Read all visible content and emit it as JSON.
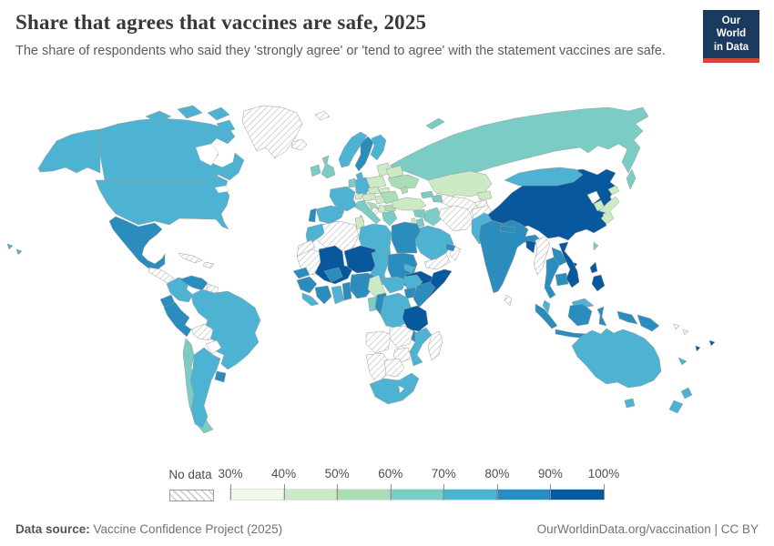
{
  "header": {
    "title": "Share that agrees that vaccines are safe, 2025",
    "subtitle": "The share of respondents who said they 'strongly agree' or 'tend to agree' with the statement vaccines are safe."
  },
  "logo": {
    "line1": "Our World",
    "line2": "in Data",
    "bg": "#1a3a5f",
    "accent": "#d7443b"
  },
  "legend": {
    "no_data_label": "No data",
    "ticks": [
      "30%",
      "40%",
      "50%",
      "60%",
      "70%",
      "80%",
      "90%",
      "100%"
    ]
  },
  "footer": {
    "source_label": "Data source:",
    "source_text": " Vaccine Confidence Project (2025)",
    "right_text": "OurWorldinData.org/vaccination | CC BY"
  },
  "chart_data": {
    "type": "choropleth_map",
    "title": "Share that agrees that vaccines are safe, 2025",
    "unit": "%",
    "legend_bins": [
      "30-40%",
      "40-50%",
      "50-60%",
      "60-70%",
      "70-80%",
      "80-90%",
      "90-100%"
    ],
    "bin_colors": {
      "30-40%": "#f0f9e8",
      "40-50%": "#ccebc5",
      "50-60%": "#a8ddb5",
      "60-70%": "#7bccc4",
      "70-80%": "#4eb3d3",
      "80-90%": "#2b8cbe",
      "90-100%": "#08589e",
      "no-data": "hatch",
      "none": "white"
    },
    "countries": [
      {
        "name": "russia",
        "bin": "60-70%"
      },
      {
        "name": "canada",
        "bin": "70-80%"
      },
      {
        "name": "united-states",
        "bin": "70-80%"
      },
      {
        "name": "greenland",
        "bin": "no-data"
      },
      {
        "name": "iceland",
        "bin": "no-data"
      },
      {
        "name": "svalbard",
        "bin": "no-data"
      },
      {
        "name": "mexico",
        "bin": "80-90%"
      },
      {
        "name": "central-america",
        "bin": "no-data"
      },
      {
        "name": "cuba",
        "bin": "no-data"
      },
      {
        "name": "hispaniola",
        "bin": "no-data"
      },
      {
        "name": "colombia",
        "bin": "70-80%"
      },
      {
        "name": "venezuela",
        "bin": "80-90%"
      },
      {
        "name": "guyana-suriname",
        "bin": "no-data"
      },
      {
        "name": "ecuador",
        "bin": "80-90%"
      },
      {
        "name": "peru",
        "bin": "80-90%"
      },
      {
        "name": "brazil",
        "bin": "70-80%"
      },
      {
        "name": "bolivia",
        "bin": "no-data"
      },
      {
        "name": "paraguay",
        "bin": "none"
      },
      {
        "name": "chile",
        "bin": "60-70%"
      },
      {
        "name": "argentina",
        "bin": "70-80%"
      },
      {
        "name": "uruguay",
        "bin": "80-90%"
      },
      {
        "name": "norway",
        "bin": "70-80%"
      },
      {
        "name": "sweden",
        "bin": "80-90%"
      },
      {
        "name": "finland",
        "bin": "70-80%"
      },
      {
        "name": "denmark",
        "bin": "70-80%"
      },
      {
        "name": "united-kingdom",
        "bin": "60-70%"
      },
      {
        "name": "ireland",
        "bin": "60-70%"
      },
      {
        "name": "baltic-states",
        "bin": "40-50%"
      },
      {
        "name": "belarus",
        "bin": "40-50%"
      },
      {
        "name": "poland",
        "bin": "40-50%"
      },
      {
        "name": "germany",
        "bin": "70-80%"
      },
      {
        "name": "netherlands",
        "bin": "60-70%"
      },
      {
        "name": "france",
        "bin": "70-80%"
      },
      {
        "name": "spain",
        "bin": "70-80%"
      },
      {
        "name": "portugal",
        "bin": "80-90%"
      },
      {
        "name": "switzerland",
        "bin": "40-50%"
      },
      {
        "name": "czechia",
        "bin": "40-50%"
      },
      {
        "name": "slovakia",
        "bin": "40-50%"
      },
      {
        "name": "austria",
        "bin": "40-50%"
      },
      {
        "name": "hungary",
        "bin": "40-50%"
      },
      {
        "name": "italy",
        "bin": "60-70%"
      },
      {
        "name": "croatia",
        "bin": "50-60%"
      },
      {
        "name": "bosnia",
        "bin": "no-data"
      },
      {
        "name": "serbia",
        "bin": "40-50%"
      },
      {
        "name": "romania",
        "bin": "50-60%"
      },
      {
        "name": "bulgaria",
        "bin": "50-60%"
      },
      {
        "name": "greece",
        "bin": "60-70%"
      },
      {
        "name": "ukraine",
        "bin": "50-60%"
      },
      {
        "name": "moldova",
        "bin": "50-60%"
      },
      {
        "name": "kazakhstan",
        "bin": "40-50%"
      },
      {
        "name": "uzbekistan-turkmenistan",
        "bin": "no-data"
      },
      {
        "name": "kyrgyzstan",
        "bin": "40-50%"
      },
      {
        "name": "tajikistan",
        "bin": "no-data"
      },
      {
        "name": "georgia",
        "bin": "60-70%"
      },
      {
        "name": "azerbaijan",
        "bin": "60-70%"
      },
      {
        "name": "turkey",
        "bin": "40-50%"
      },
      {
        "name": "syria",
        "bin": "60-70%"
      },
      {
        "name": "israel",
        "bin": "40-50%"
      },
      {
        "name": "jordan",
        "bin": "60-70%"
      },
      {
        "name": "iraq",
        "bin": "60-70%"
      },
      {
        "name": "iran",
        "bin": "no-data"
      },
      {
        "name": "afghanistan",
        "bin": "no-data"
      },
      {
        "name": "pakistan",
        "bin": "70-80%"
      },
      {
        "name": "saudi-arabia",
        "bin": "70-80%"
      },
      {
        "name": "yemen",
        "bin": "no-data"
      },
      {
        "name": "oman",
        "bin": "no-data"
      },
      {
        "name": "united-arab-emirates",
        "bin": "80-90%"
      },
      {
        "name": "china",
        "bin": "90-100%"
      },
      {
        "name": "mongolia",
        "bin": "70-80%"
      },
      {
        "name": "north-korea",
        "bin": "none"
      },
      {
        "name": "south-korea",
        "bin": "40-50%"
      },
      {
        "name": "japan",
        "bin": "40-50%"
      },
      {
        "name": "taiwan",
        "bin": "60-70%"
      },
      {
        "name": "india",
        "bin": "80-90%"
      },
      {
        "name": "nepal",
        "bin": "80-90%"
      },
      {
        "name": "bangladesh",
        "bin": "90-100%"
      },
      {
        "name": "sri-lanka",
        "bin": "no-data"
      },
      {
        "name": "myanmar",
        "bin": "no-data"
      },
      {
        "name": "thailand",
        "bin": "80-90%"
      },
      {
        "name": "laos",
        "bin": "80-90%"
      },
      {
        "name": "cambodia",
        "bin": "80-90%"
      },
      {
        "name": "vietnam",
        "bin": "90-100%"
      },
      {
        "name": "malaysia",
        "bin": "70-80%"
      },
      {
        "name": "indonesia",
        "bin": "80-90%"
      },
      {
        "name": "philippines",
        "bin": "90-100%"
      },
      {
        "name": "papua-new-guinea",
        "bin": "80-90%"
      },
      {
        "name": "solomon-islands",
        "bin": "no-data"
      },
      {
        "name": "morocco",
        "bin": "70-80%"
      },
      {
        "name": "western-sahara",
        "bin": "no-data"
      },
      {
        "name": "algeria",
        "bin": "no-data"
      },
      {
        "name": "tunisia",
        "bin": "40-50%"
      },
      {
        "name": "libya",
        "bin": "70-80%"
      },
      {
        "name": "egypt",
        "bin": "80-90%"
      },
      {
        "name": "mauritania",
        "bin": "no-data"
      },
      {
        "name": "mali",
        "bin": "90-100%"
      },
      {
        "name": "niger",
        "bin": "90-100%"
      },
      {
        "name": "chad",
        "bin": "70-80%"
      },
      {
        "name": "sudan",
        "bin": "80-90%"
      },
      {
        "name": "eritrea",
        "bin": "70-80%"
      },
      {
        "name": "ethiopia",
        "bin": "90-100%"
      },
      {
        "name": "somalia",
        "bin": "90-100%"
      },
      {
        "name": "senegal",
        "bin": "80-90%"
      },
      {
        "name": "guinea",
        "bin": "80-90%"
      },
      {
        "name": "liberia",
        "bin": "70-80%"
      },
      {
        "name": "ivory-coast",
        "bin": "80-90%"
      },
      {
        "name": "burkina-faso",
        "bin": "80-90%"
      },
      {
        "name": "ghana",
        "bin": "70-80%"
      },
      {
        "name": "togo-benin",
        "bin": "80-90%"
      },
      {
        "name": "nigeria",
        "bin": "80-90%"
      },
      {
        "name": "cameroon",
        "bin": "40-50%"
      },
      {
        "name": "central-african-republic",
        "bin": "70-80%"
      },
      {
        "name": "south-sudan",
        "bin": "70-80%"
      },
      {
        "name": "uganda",
        "bin": "80-90%"
      },
      {
        "name": "kenya",
        "bin": "80-90%"
      },
      {
        "name": "gabon",
        "bin": "60-70%"
      },
      {
        "name": "congo",
        "bin": "80-90%"
      },
      {
        "name": "democratic-republic-of-congo",
        "bin": "70-80%"
      },
      {
        "name": "tanzania",
        "bin": "90-100%"
      },
      {
        "name": "malawi",
        "bin": "80-90%"
      },
      {
        "name": "angola",
        "bin": "no-data"
      },
      {
        "name": "zambia",
        "bin": "no-data"
      },
      {
        "name": "mozambique",
        "bin": "70-80%"
      },
      {
        "name": "zimbabwe",
        "bin": "no-data"
      },
      {
        "name": "namibia",
        "bin": "no-data"
      },
      {
        "name": "botswana",
        "bin": "no-data"
      },
      {
        "name": "south-africa",
        "bin": "70-80%"
      },
      {
        "name": "madagascar",
        "bin": "no-data"
      },
      {
        "name": "australia",
        "bin": "70-80%"
      },
      {
        "name": "new-zealand",
        "bin": "70-80%"
      },
      {
        "name": "new-caledonia",
        "bin": "70-80%"
      },
      {
        "name": "fiji",
        "bin": "90-100%"
      },
      {
        "name": "vanuatu",
        "bin": "90-100%"
      }
    ]
  }
}
